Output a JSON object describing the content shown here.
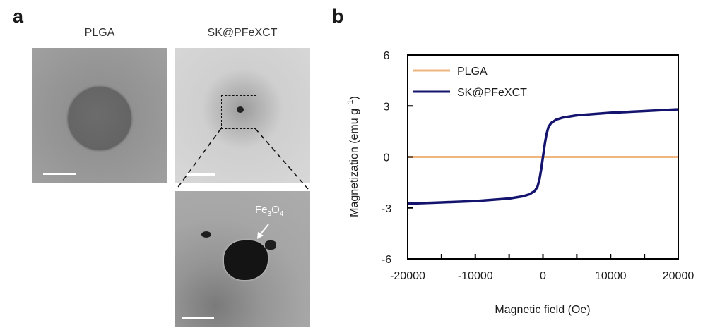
{
  "panel_a": {
    "letter": "a",
    "left_title": "PLGA",
    "right_title": "SK@PFeXCT",
    "annotation": {
      "base": "Fe",
      "sub1": "3",
      "mid": "O",
      "sub2": "4"
    }
  },
  "panel_b": {
    "letter": "b"
  },
  "colors": {
    "plga": "#f0b67f",
    "sk_pfexct": "#14146e",
    "image_bg_dark": "#8c8c8c",
    "image_bg_light": "#d2d2d2"
  },
  "chart_data": {
    "type": "line",
    "xlabel": "Magnetic field (Oe)",
    "ylabel_text": "Magnetization (emu g",
    "ylabel_sup": "−1",
    "ylabel_close": ")",
    "xlim": [
      -20000,
      20000
    ],
    "ylim": [
      -6,
      6
    ],
    "xticks": [
      -20000,
      -10000,
      0,
      10000,
      20000
    ],
    "xtick_labels": [
      "-20000",
      "-10000",
      "0",
      "10000",
      "20000"
    ],
    "yticks": [
      -6,
      -3,
      0,
      3,
      6
    ],
    "ytick_labels": [
      "-6",
      "-3",
      "0",
      "3",
      "6"
    ],
    "legend_position": "top-left",
    "grid": false,
    "series": [
      {
        "name": "PLGA",
        "color": "#f0b67f",
        "x": [
          -20000,
          20000
        ],
        "y": [
          0,
          0
        ]
      },
      {
        "name": "SK@PFeXCT",
        "color": "#14146e",
        "x": [
          -20000,
          -15000,
          -10000,
          -5000,
          -3000,
          -2000,
          -1200,
          -800,
          -500,
          -250,
          0,
          250,
          500,
          800,
          1200,
          2000,
          3000,
          5000,
          10000,
          15000,
          19800,
          20000
        ],
        "y": [
          -2.75,
          -2.68,
          -2.6,
          -2.45,
          -2.32,
          -2.2,
          -2.0,
          -1.75,
          -1.3,
          -0.7,
          0,
          0.7,
          1.3,
          1.75,
          2.0,
          2.2,
          2.32,
          2.45,
          2.6,
          2.7,
          2.8,
          2.78
        ]
      }
    ]
  }
}
